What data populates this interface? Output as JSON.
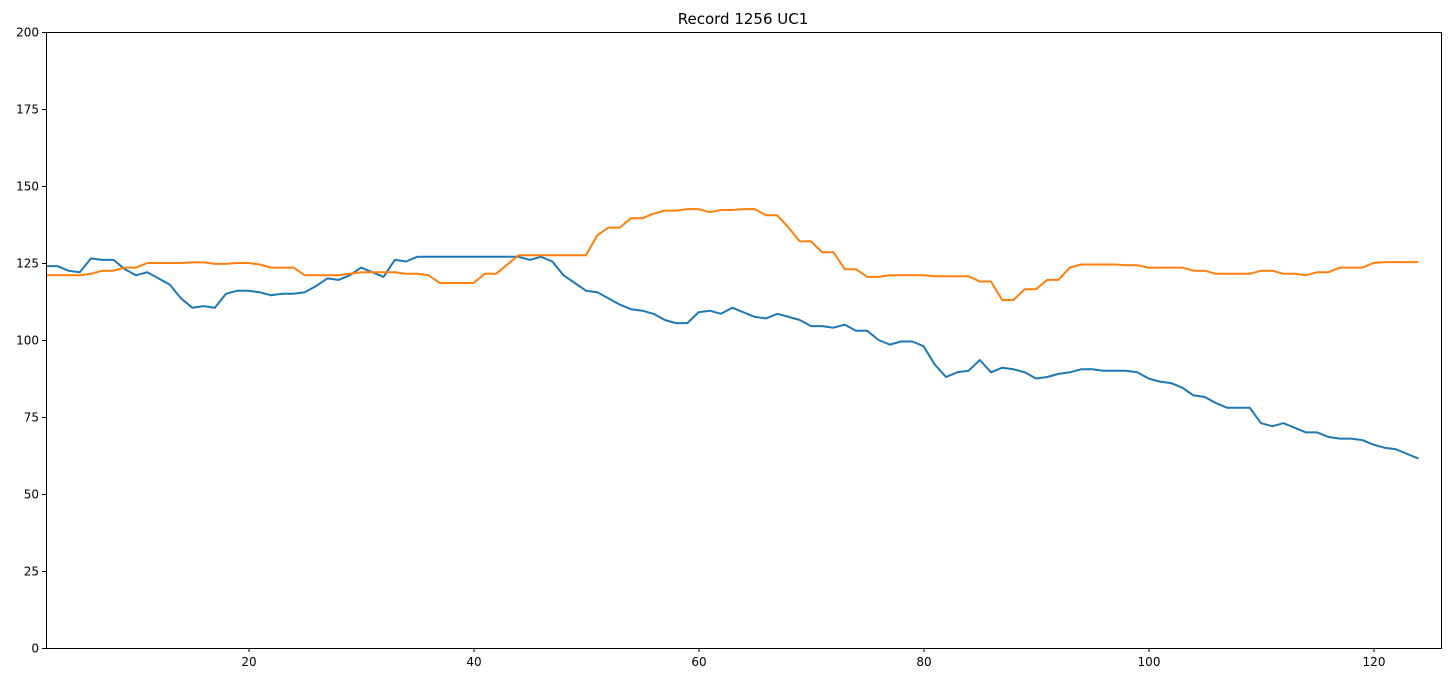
{
  "chart_data": {
    "type": "line",
    "title": "Record 1256 UC1",
    "xlabel": "",
    "ylabel": "",
    "xlim": [
      2,
      126
    ],
    "ylim": [
      0,
      200
    ],
    "xticks": [
      20,
      40,
      60,
      80,
      100,
      120
    ],
    "yticks": [
      0,
      25,
      50,
      75,
      100,
      125,
      150,
      175,
      200
    ],
    "grid": false,
    "x_start": 2,
    "series": [
      {
        "color": "#1f77b4",
        "values": [
          124,
          124,
          122.5,
          122,
          126.5,
          126,
          126,
          123,
          121,
          122,
          120,
          118,
          113.5,
          110.5,
          111,
          110.5,
          115,
          116,
          116,
          115.5,
          114.5,
          115,
          115,
          115.5,
          117.5,
          120,
          119.5,
          121,
          123.5,
          122,
          120.5,
          126,
          125.5,
          127,
          127,
          127,
          127,
          127,
          127,
          127,
          127,
          127,
          127,
          126,
          127,
          125.5,
          121,
          118.5,
          116,
          115.5,
          113.5,
          111.5,
          110,
          109.5,
          108.5,
          106.5,
          105.5,
          105.5,
          109,
          109.5,
          108.5,
          110.5,
          109,
          107.5,
          107,
          108.5,
          107.5,
          106.5,
          104.5,
          104.5,
          104,
          105,
          103,
          103,
          100,
          98.5,
          99.5,
          99.5,
          98,
          92,
          88,
          89.5,
          90,
          93.5,
          89.5,
          91,
          90.5,
          89.5,
          87.5,
          88,
          89,
          89.5,
          90.5,
          90.5,
          90,
          90,
          90,
          89.5,
          87.5,
          86.5,
          86,
          84.5,
          82,
          81.5,
          79.5,
          78,
          78,
          78,
          73,
          72,
          73,
          71.5,
          70,
          70,
          68.5,
          68,
          68,
          67.5,
          66,
          65,
          64.5,
          63,
          61.5
        ]
      },
      {
        "color": "#ff7f0e",
        "values": [
          121,
          121,
          121,
          121,
          121.5,
          122.5,
          122.5,
          123.5,
          123.5,
          125,
          125,
          125,
          125,
          125.2,
          125.2,
          124.7,
          124.7,
          125,
          125,
          124.5,
          123.5,
          123.5,
          123.5,
          121,
          121,
          121,
          121,
          121.5,
          122,
          122,
          122,
          122,
          121.5,
          121.5,
          121,
          118.5,
          118.5,
          118.5,
          118.5,
          121.5,
          121.5,
          124.5,
          127.5,
          127.5,
          127.5,
          127.5,
          127.5,
          127.5,
          127.5,
          134,
          136.5,
          136.5,
          139.5,
          139.5,
          141,
          142,
          142,
          142.5,
          142.5,
          141.5,
          142.2,
          142.2,
          142.5,
          142.5,
          140.5,
          140.5,
          136.5,
          132,
          132,
          128.5,
          128.5,
          123,
          123,
          120.5,
          120.5,
          121,
          121,
          121,
          121,
          120.7,
          120.7,
          120.7,
          120.7,
          119,
          119,
          113,
          113,
          116.5,
          116.5,
          119.5,
          119.5,
          123.5,
          124.5,
          124.5,
          124.5,
          124.5,
          124.3,
          124.3,
          123.5,
          123.5,
          123.5,
          123.5,
          122.5,
          122.5,
          121.5,
          121.5,
          121.5,
          121.5,
          122.5,
          122.5,
          121.5,
          121.5,
          121,
          122,
          122,
          123.5,
          123.5,
          123.5,
          125,
          125.3,
          125.3,
          125.3,
          125.3
        ]
      }
    ]
  }
}
